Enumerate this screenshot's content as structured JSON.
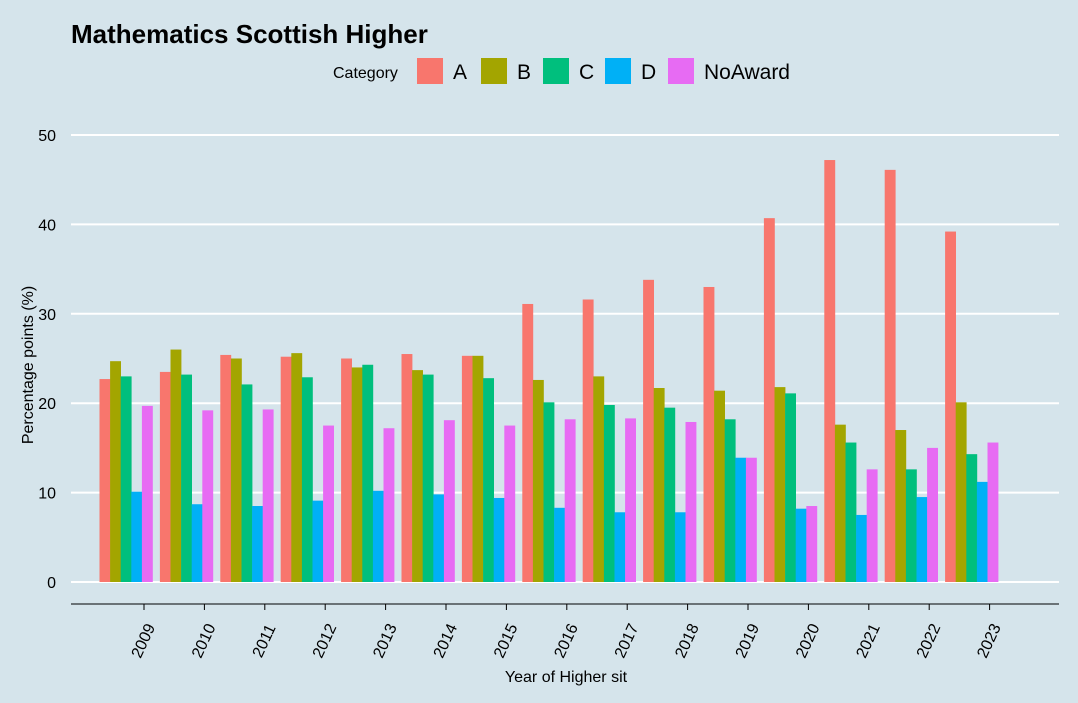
{
  "chart_data": {
    "type": "bar",
    "title": "Mathematics Scottish Higher",
    "xlabel": "Year of Higher sit",
    "ylabel": "Percentage points (%)",
    "ylim": [
      0,
      50
    ],
    "yticks": [
      0,
      10,
      20,
      30,
      40,
      50
    ],
    "grid": "horizontal",
    "legend": {
      "title": "Category",
      "placement": "top"
    },
    "categories": [
      "2009",
      "2010",
      "2011",
      "2012",
      "2013",
      "2014",
      "2015",
      "2016",
      "2017",
      "2018",
      "2019",
      "2020",
      "2021",
      "2022",
      "2023"
    ],
    "series": [
      {
        "name": "A",
        "color": "#f8766d",
        "values": [
          22.7,
          23.5,
          25.4,
          25.2,
          25.0,
          25.5,
          25.3,
          31.1,
          31.6,
          33.8,
          33.0,
          40.7,
          47.2,
          46.1,
          39.2
        ]
      },
      {
        "name": "B",
        "color": "#a3a500",
        "values": [
          24.7,
          26.0,
          25.0,
          25.6,
          24.0,
          23.7,
          25.3,
          22.6,
          23.0,
          21.7,
          21.4,
          21.8,
          17.6,
          17.0,
          20.1
        ]
      },
      {
        "name": "C",
        "color": "#00bf7d",
        "values": [
          23.0,
          23.2,
          22.1,
          22.9,
          24.3,
          23.2,
          22.8,
          20.1,
          19.8,
          19.5,
          18.2,
          21.1,
          15.6,
          12.6,
          14.3
        ]
      },
      {
        "name": "D",
        "color": "#00b0f6",
        "values": [
          10.1,
          8.7,
          8.5,
          9.1,
          10.2,
          9.8,
          9.4,
          8.3,
          7.8,
          7.8,
          13.9,
          8.2,
          7.5,
          9.5,
          11.2
        ]
      },
      {
        "name": "NoAward",
        "color": "#e76bf3",
        "values": [
          19.7,
          19.2,
          19.3,
          17.5,
          17.2,
          18.1,
          17.5,
          18.2,
          18.3,
          17.9,
          13.9,
          8.5,
          12.6,
          15.0,
          15.6
        ]
      }
    ]
  }
}
